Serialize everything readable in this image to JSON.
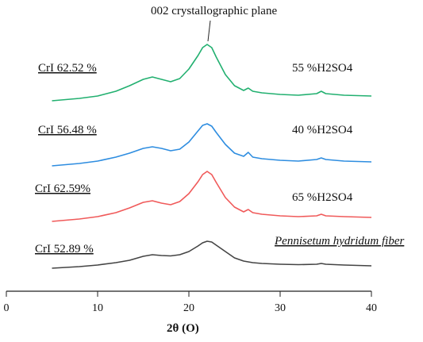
{
  "chart_data": {
    "type": "line",
    "title": "",
    "xlabel": "2θ (O)",
    "ylabel": "",
    "xlim": [
      0,
      40
    ],
    "x_ticks": [
      "0",
      "10",
      "20",
      "30",
      "40"
    ],
    "grid": false,
    "annotation": "002 crystallographic plane",
    "series": [
      {
        "name": "Pennisetum hydridum fiber",
        "cri": "CrI 52.89 %",
        "color": "#444444",
        "x": [
          5,
          8,
          10,
          12,
          13.5,
          15,
          16,
          17,
          18,
          19,
          20,
          21,
          21.5,
          22,
          22.5,
          23,
          24,
          25,
          26,
          27,
          28,
          30,
          32,
          34,
          34.5,
          35,
          37,
          40
        ],
        "y": [
          2,
          4,
          6,
          9,
          12,
          17,
          19,
          18,
          17.5,
          19,
          23,
          30,
          34,
          36,
          35,
          31,
          23,
          15,
          11,
          9,
          8,
          7,
          6.5,
          7,
          8,
          7,
          6,
          5
        ]
      },
      {
        "name": "65 %H2SO4",
        "cri": "CrI 62.59%",
        "color": "#f05a5a",
        "x": [
          5,
          8,
          10,
          12,
          13.5,
          15,
          16,
          17,
          18,
          19,
          20,
          21,
          21.5,
          22,
          22.5,
          23,
          24,
          25,
          26,
          26.5,
          27,
          28,
          30,
          32,
          34,
          34.5,
          35,
          37,
          40
        ],
        "y": [
          3,
          6,
          9,
          14,
          20,
          27,
          29,
          26,
          24,
          28,
          38,
          53,
          62,
          66,
          62,
          52,
          33,
          21,
          15,
          18,
          14,
          12,
          10,
          9,
          10,
          12,
          10,
          9,
          8
        ]
      },
      {
        "name": "40 %H2SO4",
        "cri": "CrI 56.48 %",
        "color": "#2e8de0",
        "x": [
          5,
          8,
          10,
          12,
          13.5,
          15,
          16,
          17,
          18,
          19,
          20,
          21,
          21.5,
          22,
          22.5,
          23,
          24,
          25,
          26,
          26.5,
          27,
          28,
          30,
          32,
          34,
          34.5,
          35,
          37,
          40
        ],
        "y": [
          3,
          6,
          9,
          14,
          19,
          25,
          27,
          25,
          22,
          24,
          33,
          47,
          54,
          56,
          53,
          45,
          30,
          19,
          15,
          20,
          14,
          12,
          10,
          9,
          11,
          13,
          11,
          9,
          8
        ]
      },
      {
        "name": "55 %H2SO4",
        "cri": "CrI 62.52 %",
        "color": "#22b070",
        "x": [
          5,
          8,
          10,
          12,
          13.5,
          15,
          16,
          17,
          18,
          19,
          20,
          21,
          21.5,
          22,
          22.5,
          23,
          24,
          25,
          26,
          26.5,
          27,
          28,
          30,
          32,
          34,
          34.5,
          35,
          37,
          40
        ],
        "y": [
          3,
          6,
          9,
          15,
          22,
          30,
          33,
          30,
          27,
          31,
          43,
          60,
          70,
          74,
          70,
          58,
          36,
          22,
          16,
          19,
          15,
          13,
          11,
          10,
          12,
          15,
          12,
          10,
          9
        ]
      }
    ]
  }
}
